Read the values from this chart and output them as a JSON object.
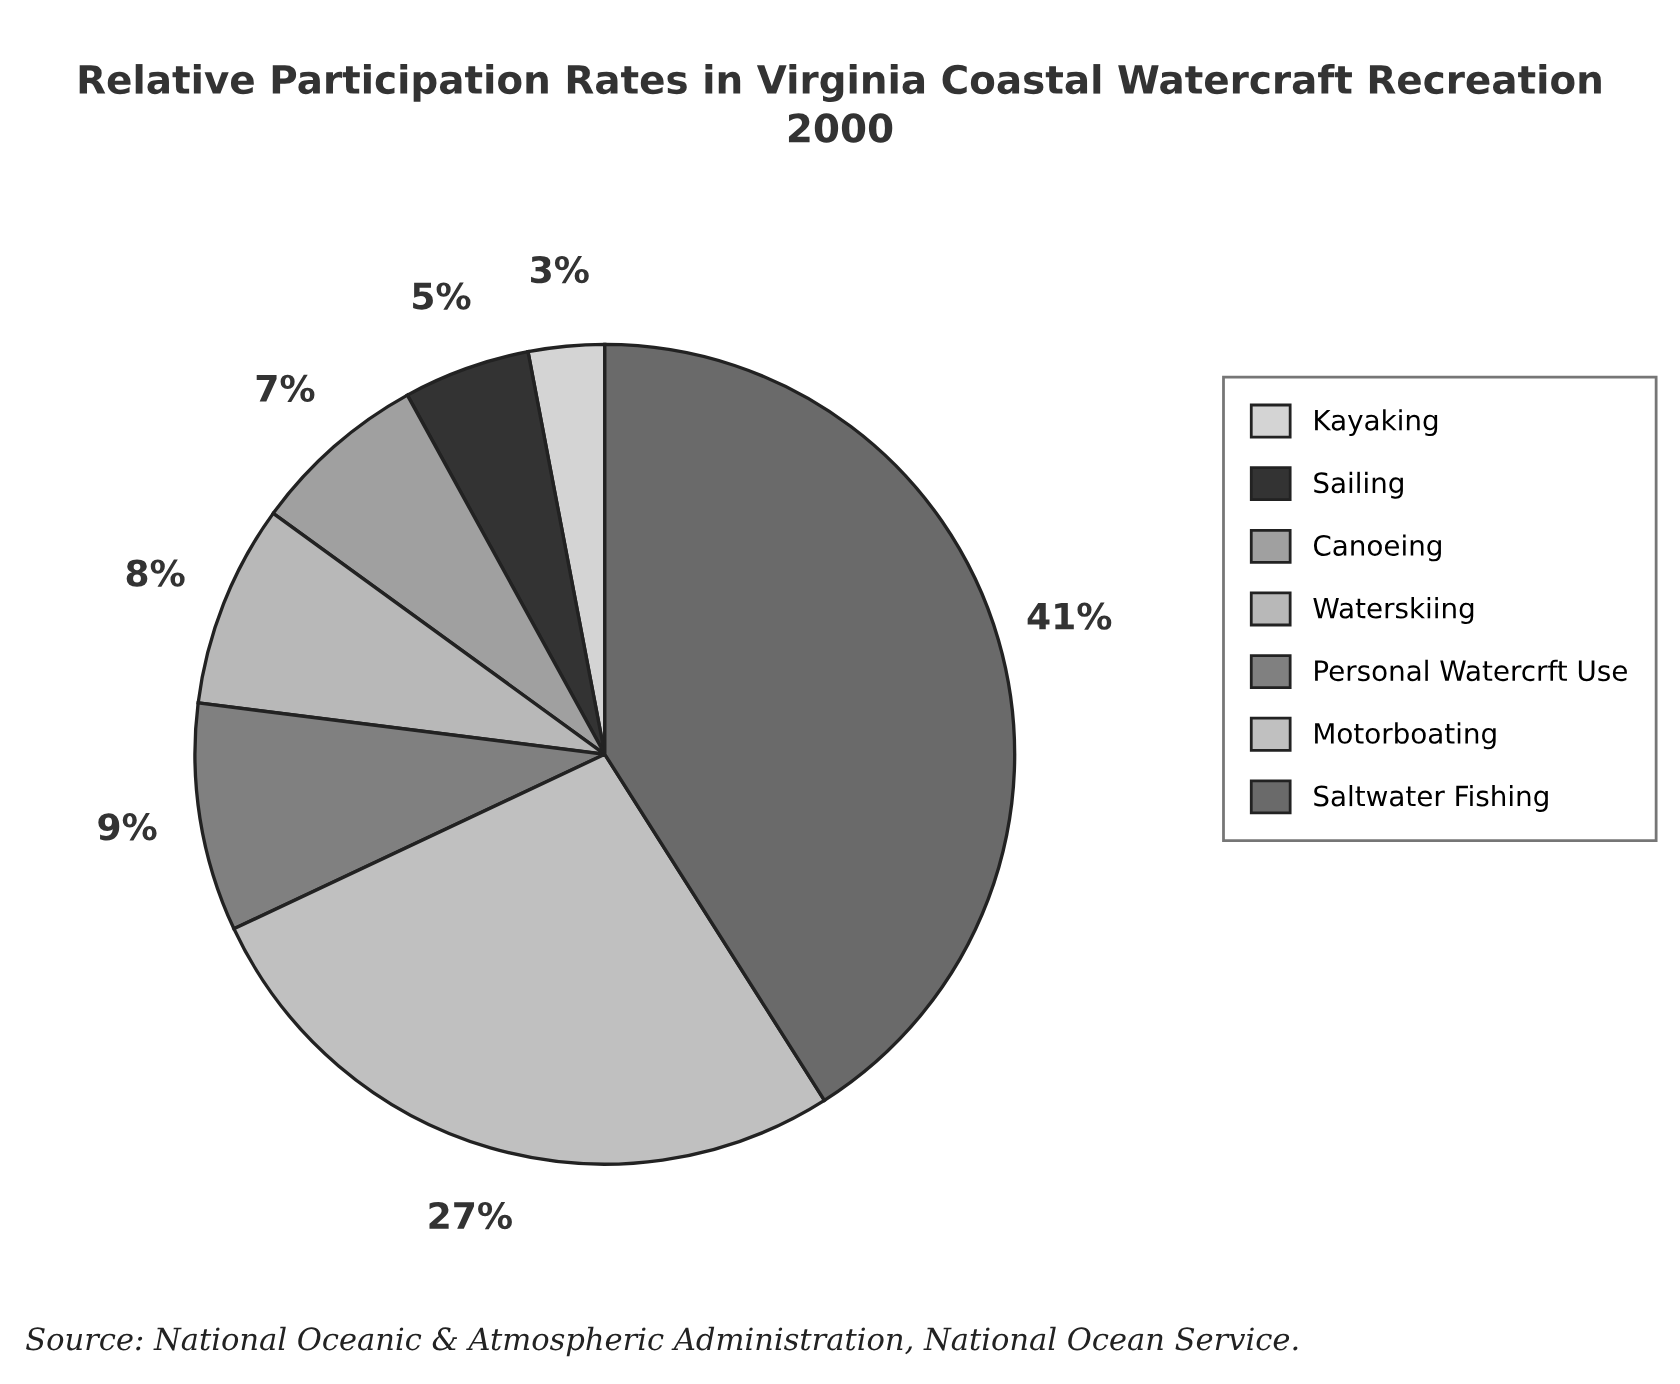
{
  "chart_data": {
    "type": "pie",
    "title": "Relative Participation Rates in Virginia Coastal Watercraft Recreation",
    "subtitle": "2000",
    "categories": [
      "Kayaking",
      "Sailing",
      "Canoeing",
      "Waterskiing",
      "Personal Watercrft Use",
      "Motorboating",
      "Saltwater Fishing"
    ],
    "values": [
      3,
      5,
      7,
      8,
      9,
      27,
      41
    ],
    "value_labels": [
      "3%",
      "5%",
      "7%",
      "8%",
      "9%",
      "27%",
      "41%"
    ],
    "colors": [
      "#d4d4d4",
      "#333333",
      "#a0a0a0",
      "#b8b8b8",
      "#808080",
      "#c0c0c0",
      "#6a6a6a"
    ],
    "legend": "right",
    "annotations": [
      "Source: National Oceanic & Atmospheric Administration, National Ocean Service."
    ]
  }
}
